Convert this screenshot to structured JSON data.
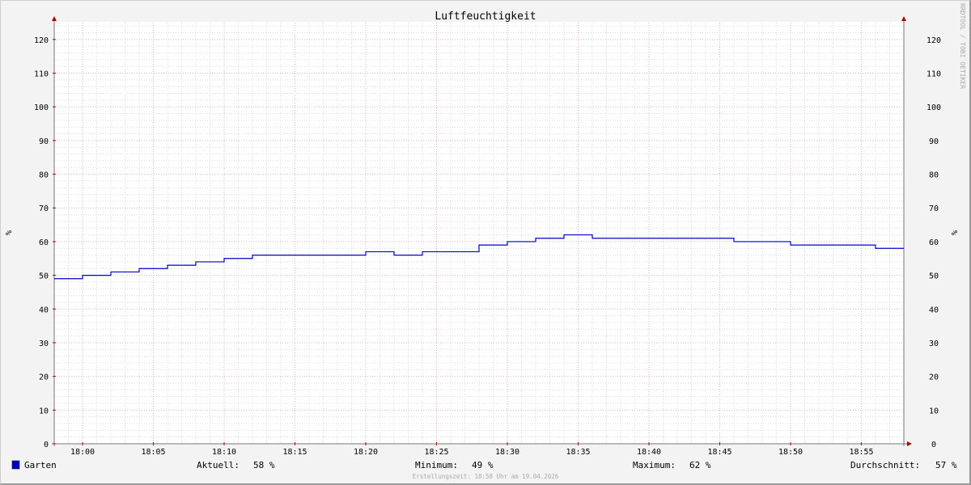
{
  "chart_data": {
    "type": "line",
    "title": "Luftfeuchtigkeit",
    "ylabel": "%",
    "ylim": [
      0,
      125
    ],
    "yticks": [
      0,
      10,
      20,
      30,
      40,
      50,
      60,
      70,
      80,
      90,
      100,
      110,
      120
    ],
    "xlim": [
      "17:58",
      "18:58"
    ],
    "xticks": [
      "18:00",
      "18:05",
      "18:10",
      "18:15",
      "18:20",
      "18:25",
      "18:30",
      "18:35",
      "18:40",
      "18:45",
      "18:50",
      "18:55"
    ],
    "grid": true,
    "step": true,
    "series": [
      {
        "name": "Garten",
        "color": "#0000cc",
        "x": [
          "17:58",
          "18:00",
          "18:02",
          "18:04",
          "18:06",
          "18:08",
          "18:10",
          "18:12",
          "18:20",
          "18:22",
          "18:24",
          "18:28",
          "18:30",
          "18:32",
          "18:34",
          "18:36",
          "18:46",
          "18:50",
          "18:56"
        ],
        "values": [
          49,
          50,
          51,
          52,
          53,
          54,
          55,
          56,
          57,
          56,
          57,
          59,
          60,
          61,
          62,
          61,
          60,
          59,
          58
        ]
      }
    ],
    "legend": {
      "placement": "bottom",
      "series_label": "Garten",
      "stats": [
        {
          "label": "Aktuell:",
          "value": "58 %"
        },
        {
          "label": "Minimum:",
          "value": "49 %"
        },
        {
          "label": "Maximum:",
          "value": "62 %"
        },
        {
          "label": "Durchschnitt:",
          "value": "57 %"
        }
      ]
    },
    "footer": "Erstellungszeit: 18:58 Uhr am 19.04.2026",
    "watermark": "RRDTOOL / TOBI OETIKER"
  }
}
